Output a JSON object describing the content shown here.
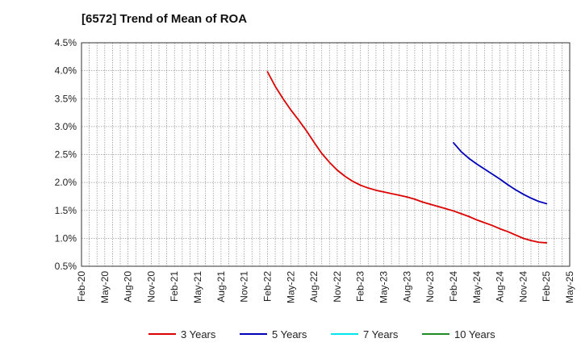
{
  "chart_data": {
    "type": "line",
    "title": "[6572]  Trend of Mean of ROA",
    "xlabel": "",
    "ylabel": "",
    "y_unit": "%",
    "ylim": [
      0.5,
      4.5
    ],
    "y_ticks": [
      "4.5%",
      "4.0%",
      "3.5%",
      "3.0%",
      "2.5%",
      "2.0%",
      "1.5%",
      "1.0%",
      "0.5%"
    ],
    "x_ticks": [
      "Feb-20",
      "May-20",
      "Aug-20",
      "Nov-20",
      "Feb-21",
      "May-21",
      "Aug-21",
      "Nov-21",
      "Feb-22",
      "May-22",
      "Aug-22",
      "Nov-22",
      "Feb-23",
      "May-23",
      "Aug-23",
      "Nov-23",
      "Feb-24",
      "May-24",
      "Aug-24",
      "Nov-24",
      "Feb-25",
      "May-25"
    ],
    "grid": true,
    "legend_position": "bottom",
    "series": [
      {
        "name": "3 Years",
        "color": "#dd0000",
        "points": [
          {
            "x": "Feb-22",
            "y": 3.98
          },
          {
            "x": "Mar-22",
            "y": 3.72
          },
          {
            "x": "Apr-22",
            "y": 3.5
          },
          {
            "x": "May-22",
            "y": 3.3
          },
          {
            "x": "Jun-22",
            "y": 3.12
          },
          {
            "x": "Jul-22",
            "y": 2.93
          },
          {
            "x": "Aug-22",
            "y": 2.72
          },
          {
            "x": "Sep-22",
            "y": 2.52
          },
          {
            "x": "Oct-22",
            "y": 2.36
          },
          {
            "x": "Nov-22",
            "y": 2.22
          },
          {
            "x": "Dec-22",
            "y": 2.11
          },
          {
            "x": "Jan-23",
            "y": 2.02
          },
          {
            "x": "Feb-23",
            "y": 1.95
          },
          {
            "x": "Mar-23",
            "y": 1.9
          },
          {
            "x": "Apr-23",
            "y": 1.86
          },
          {
            "x": "May-23",
            "y": 1.83
          },
          {
            "x": "Jun-23",
            "y": 1.8
          },
          {
            "x": "Jul-23",
            "y": 1.77
          },
          {
            "x": "Aug-23",
            "y": 1.74
          },
          {
            "x": "Sep-23",
            "y": 1.7
          },
          {
            "x": "Oct-23",
            "y": 1.65
          },
          {
            "x": "Nov-23",
            "y": 1.61
          },
          {
            "x": "Dec-23",
            "y": 1.57
          },
          {
            "x": "Jan-24",
            "y": 1.53
          },
          {
            "x": "Feb-24",
            "y": 1.49
          },
          {
            "x": "Mar-24",
            "y": 1.44
          },
          {
            "x": "Apr-24",
            "y": 1.39
          },
          {
            "x": "May-24",
            "y": 1.33
          },
          {
            "x": "Jun-24",
            "y": 1.28
          },
          {
            "x": "Jul-24",
            "y": 1.23
          },
          {
            "x": "Aug-24",
            "y": 1.17
          },
          {
            "x": "Sep-24",
            "y": 1.12
          },
          {
            "x": "Oct-24",
            "y": 1.06
          },
          {
            "x": "Nov-24",
            "y": 1.0
          },
          {
            "x": "Dec-24",
            "y": 0.96
          },
          {
            "x": "Jan-25",
            "y": 0.93
          },
          {
            "x": "Feb-25",
            "y": 0.92
          }
        ]
      },
      {
        "name": "5 Years",
        "color": "#0000bb",
        "points": [
          {
            "x": "Feb-24",
            "y": 2.71
          },
          {
            "x": "Mar-24",
            "y": 2.55
          },
          {
            "x": "Apr-24",
            "y": 2.43
          },
          {
            "x": "May-24",
            "y": 2.33
          },
          {
            "x": "Jun-24",
            "y": 2.24
          },
          {
            "x": "Jul-24",
            "y": 2.15
          },
          {
            "x": "Aug-24",
            "y": 2.06
          },
          {
            "x": "Sep-24",
            "y": 1.96
          },
          {
            "x": "Oct-24",
            "y": 1.87
          },
          {
            "x": "Nov-24",
            "y": 1.79
          },
          {
            "x": "Dec-24",
            "y": 1.72
          },
          {
            "x": "Jan-25",
            "y": 1.66
          },
          {
            "x": "Feb-25",
            "y": 1.62
          }
        ]
      },
      {
        "name": "7 Years",
        "color": "#00e5ee",
        "points": []
      },
      {
        "name": "10 Years",
        "color": "#228b22",
        "points": []
      }
    ]
  }
}
